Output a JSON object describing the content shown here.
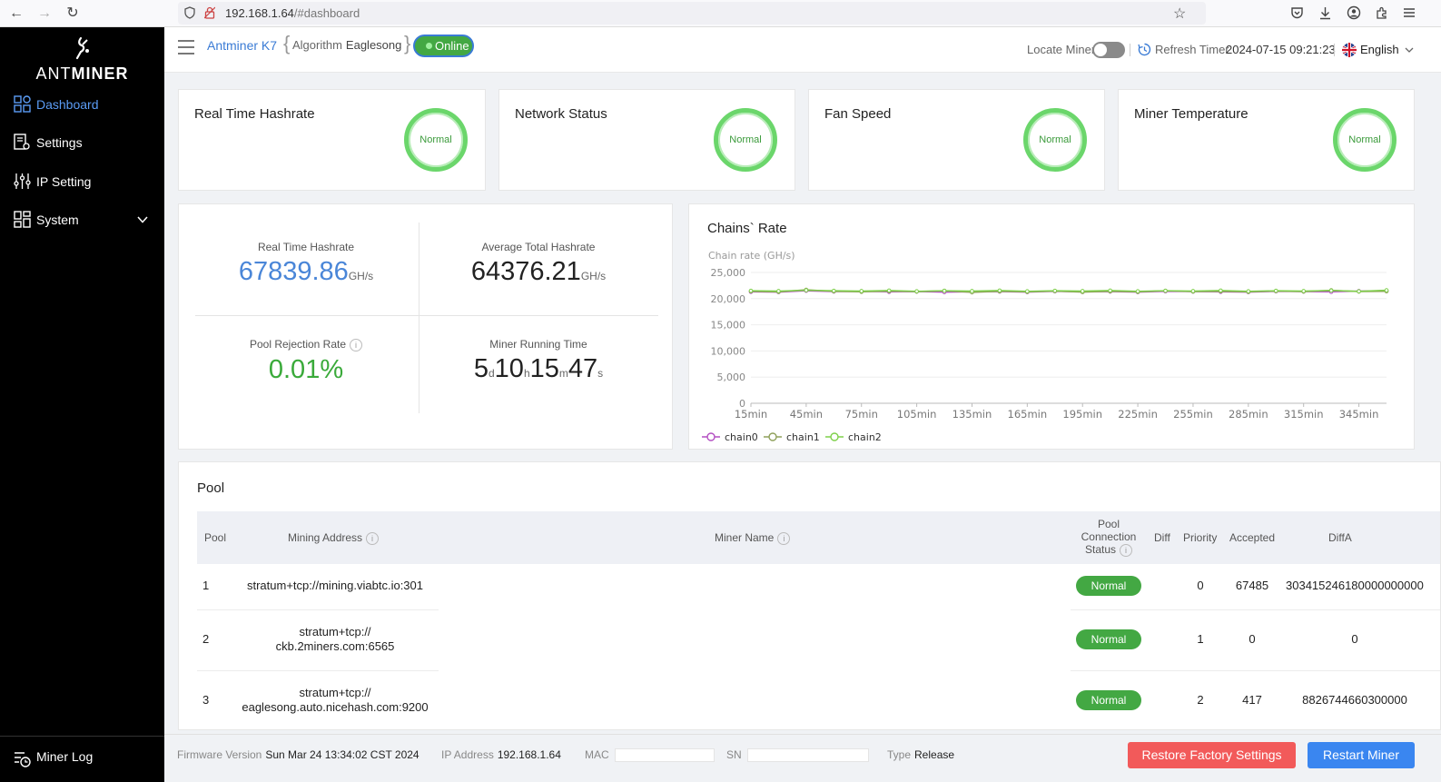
{
  "browser": {
    "url_host": "192.168.1.64",
    "url_path": "/#dashboard"
  },
  "sidebar": {
    "logo_text_light": "ANT",
    "logo_text_bold": "MINER",
    "items": [
      {
        "label": "Dashboard",
        "icon": "dashboard-icon"
      },
      {
        "label": "Settings",
        "icon": "settings-icon"
      },
      {
        "label": "IP Setting",
        "icon": "sliders-icon"
      },
      {
        "label": "System",
        "icon": "system-icon"
      }
    ],
    "miner_log": "Miner Log"
  },
  "topbar": {
    "model": "Antminer K7",
    "algorithm_label": "Algorithm",
    "algorithm_value": "Eaglesong",
    "status": "Online",
    "locate_label": "Locate Miner",
    "refresh_label": "Refresh Timer",
    "refresh_value": "2024-07-15 09:21:23",
    "language": "English"
  },
  "status_cards": [
    {
      "title": "Real Time Hashrate",
      "status": "Normal"
    },
    {
      "title": "Network Status",
      "status": "Normal"
    },
    {
      "title": "Fan Speed",
      "status": "Normal"
    },
    {
      "title": "Miner Temperature",
      "status": "Normal"
    }
  ],
  "stats": {
    "realtime_label": "Real Time Hashrate",
    "realtime_value": "67839.86",
    "realtime_unit": "GH/s",
    "average_label": "Average Total Hashrate",
    "average_value": "64376.21",
    "average_unit": "GH/s",
    "rejection_label": "Pool Rejection Rate",
    "rejection_value": "0.01%",
    "runtime_label": "Miner Running Time",
    "runtime": {
      "d": "5",
      "d_u": "d",
      "h": "10",
      "h_u": "h",
      "m": "15",
      "m_u": "m",
      "s": "47",
      "s_u": "s"
    }
  },
  "chart_title": "Chains` Rate",
  "chart_data": {
    "type": "line",
    "title": "Chains` Rate",
    "ylabel": "Chain rate (GH/s)",
    "ylim": [
      0,
      25000
    ],
    "yticks": [
      "25,000",
      "20,000",
      "15,000",
      "10,000",
      "5,000",
      "0"
    ],
    "x_tick_labels": [
      "15min",
      "45min",
      "75min",
      "105min",
      "135min",
      "165min",
      "195min",
      "225min",
      "255min",
      "285min",
      "315min",
      "345min"
    ],
    "legend_position": "bottom-left",
    "series": [
      {
        "name": "chain0",
        "color": "#b34fc2",
        "values": [
          21300,
          21250,
          21500,
          21350,
          21400,
          21300,
          21350,
          21250,
          21300,
          21350,
          21250,
          21400,
          21300,
          21350,
          21250,
          21400,
          21350,
          21300,
          21250,
          21400,
          21350,
          21300,
          21450,
          21500
        ]
      },
      {
        "name": "chain1",
        "color": "#8fa05a",
        "values": [
          21400,
          21300,
          21700,
          21400,
          21300,
          21450,
          21350,
          21500,
          21200,
          21400,
          21300,
          21450,
          21250,
          21400,
          21300,
          21500,
          21350,
          21400,
          21300,
          21450,
          21350,
          21600,
          21350,
          21400
        ]
      },
      {
        "name": "chain2",
        "color": "#7ed04a",
        "values": [
          21500,
          21450,
          21600,
          21500,
          21450,
          21550,
          21400,
          21500,
          21450,
          21550,
          21400,
          21500,
          21450,
          21550,
          21400,
          21500,
          21450,
          21550,
          21400,
          21500,
          21450,
          21550,
          21400,
          21600
        ]
      }
    ]
  },
  "pool": {
    "title": "Pool",
    "headers": {
      "pool": "Pool",
      "address": "Mining Address",
      "name": "Miner Name",
      "status_1": "Pool",
      "status_2": "Connection",
      "status_3": "Status",
      "diff": "Diff",
      "priority": "Priority",
      "accepted": "Accepted",
      "diffa": "DiffA"
    },
    "rows": [
      {
        "pool": "1",
        "address_1": "stratum+tcp://mining.viabtc.io:301",
        "address_2": "",
        "status": "Normal",
        "priority": "0",
        "accepted": "67485",
        "diffa": "303415246180000000000"
      },
      {
        "pool": "2",
        "address_1": "stratum+tcp://",
        "address_2": "ckb.2miners.com:6565",
        "status": "Normal",
        "priority": "1",
        "accepted": "0",
        "diffa": "0"
      },
      {
        "pool": "3",
        "address_1": "stratum+tcp://",
        "address_2": "eaglesong.auto.nicehash.com:9200",
        "status": "Normal",
        "priority": "2",
        "accepted": "417",
        "diffa": "8826744660300000"
      }
    ]
  },
  "footer": {
    "firmware_label": "Firmware Version",
    "firmware_value": "Sun Mar 24 13:34:02 CST 2024",
    "ip_label": "IP Address",
    "ip_value": "192.168.1.64",
    "mac_label": "MAC",
    "sn_label": "SN",
    "type_label": "Type",
    "type_value": "Release",
    "restore_button": "Restore Factory Settings",
    "restart_button": "Restart Miner"
  },
  "colors": {
    "accent": "#3a7bd5",
    "normal_green": "#43a843",
    "restore_red": "#f25a5a",
    "restart_blue": "#3a86f0"
  }
}
